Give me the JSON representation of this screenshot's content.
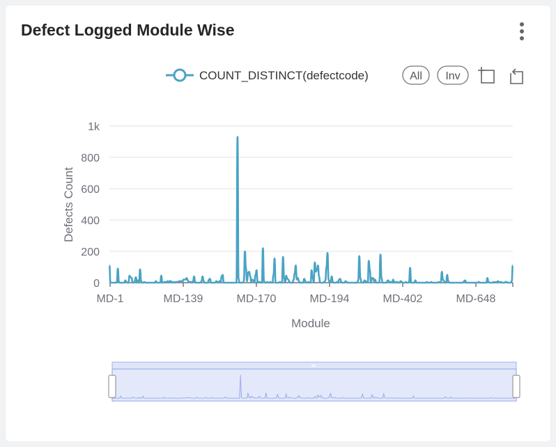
{
  "card": {
    "title": "Defect Logged Module Wise",
    "menu_icon": "kebab-vertical-icon"
  },
  "toolbar": {
    "all_label": "All",
    "inverse_label": "Inv",
    "icons": [
      "area-zoom-icon",
      "zoom-reset-icon"
    ]
  },
  "colors": {
    "series": "#4aa3c4",
    "grid": "#e6e6e6",
    "axis": "#6e7079",
    "zoom_fill": "#e3e9fb",
    "zoom_line": "#8fa5e6"
  },
  "chart_data": {
    "type": "line",
    "xlabel": "Module",
    "ylabel": "Defects Count",
    "ylim": [
      0,
      1000
    ],
    "y_ticks": [
      "0",
      "200",
      "400",
      "600",
      "800",
      "1k"
    ],
    "x_tick_labels": [
      "MD-1",
      "MD-139",
      "MD-170",
      "MD-194",
      "MD-402",
      "MD-648"
    ],
    "legend": "COUNT_DISTINCT(defectcode)",
    "legend_position": "top-right",
    "grid": true,
    "series": [
      {
        "name": "COUNT_DISTINCT(defectcode)",
        "values": [
          110,
          0,
          0,
          0,
          0,
          0,
          0,
          5,
          90,
          5,
          0,
          0,
          0,
          0,
          0,
          15,
          5,
          0,
          0,
          45,
          35,
          30,
          0,
          0,
          10,
          35,
          0,
          15,
          0,
          85,
          10,
          0,
          0,
          5,
          0,
          0,
          0,
          0,
          0,
          0,
          0,
          0,
          0,
          0,
          10,
          0,
          0,
          0,
          0,
          45,
          0,
          0,
          5,
          5,
          0,
          10,
          0,
          10,
          10,
          5,
          0,
          5,
          0,
          5,
          5,
          5,
          10,
          10,
          10,
          5,
          20,
          20,
          20,
          30,
          15,
          5,
          5,
          5,
          0,
          10,
          40,
          5,
          0,
          0,
          0,
          0,
          0,
          10,
          40,
          10,
          0,
          0,
          0,
          0,
          20,
          25,
          0,
          0,
          0,
          0,
          0,
          10,
          5,
          0,
          10,
          0,
          40,
          50,
          0,
          0,
          0,
          0,
          0,
          0,
          0,
          0,
          0,
          0,
          0,
          0,
          0,
          930,
          25,
          0,
          0,
          0,
          0,
          10,
          200,
          90,
          10,
          65,
          70,
          40,
          5,
          20,
          15,
          0,
          50,
          80,
          0,
          5,
          5,
          0,
          0,
          220,
          10,
          0,
          0,
          5,
          0,
          0,
          5,
          0,
          0,
          50,
          155,
          0,
          0,
          0,
          0,
          5,
          0,
          0,
          165,
          30,
          0,
          45,
          25,
          20,
          5,
          0,
          0,
          0,
          20,
          60,
          110,
          20,
          30,
          10,
          0,
          0,
          0,
          0,
          25,
          10,
          0,
          0,
          5,
          0,
          0,
          80,
          30,
          5,
          130,
          70,
          80,
          110,
          40,
          0,
          0,
          0,
          0,
          5,
          15,
          100,
          190,
          20,
          0,
          10,
          40,
          5,
          0,
          0,
          0,
          5,
          0,
          20,
          25,
          5,
          0,
          0,
          0,
          10,
          5,
          0,
          0,
          0,
          0,
          0,
          0,
          0,
          0,
          0,
          0,
          15,
          170,
          30,
          5,
          0,
          0,
          15,
          10,
          5,
          0,
          140,
          80,
          0,
          30,
          30,
          10,
          20,
          0,
          0,
          0,
          5,
          180,
          30,
          0,
          0,
          0,
          0,
          5,
          15,
          10,
          0,
          5,
          0,
          20,
          0,
          5,
          0,
          5,
          0,
          0,
          10,
          5,
          0,
          0,
          0,
          5,
          0,
          0,
          5,
          95,
          0,
          0,
          0,
          0,
          15,
          0,
          0,
          0,
          0,
          0,
          0,
          0,
          0,
          0,
          0,
          5,
          0,
          0,
          0,
          5,
          0,
          0,
          0,
          0,
          0,
          0,
          5,
          0,
          0,
          70,
          20,
          10,
          0,
          0,
          50,
          10,
          0,
          0,
          0,
          0,
          0,
          0,
          0,
          0,
          0,
          0,
          0,
          0,
          0,
          0,
          10,
          15,
          0,
          0,
          0,
          0,
          0,
          0,
          0,
          0,
          0,
          0,
          0,
          0,
          5,
          0,
          0,
          0,
          0,
          0,
          0,
          0,
          30,
          5,
          0,
          0,
          0,
          0,
          5,
          0,
          5,
          0,
          10,
          5,
          0,
          5,
          0,
          0,
          0,
          5,
          5,
          0,
          0,
          0,
          0,
          10,
          110
        ]
      }
    ],
    "zoom_range": [
      0,
      100
    ]
  }
}
